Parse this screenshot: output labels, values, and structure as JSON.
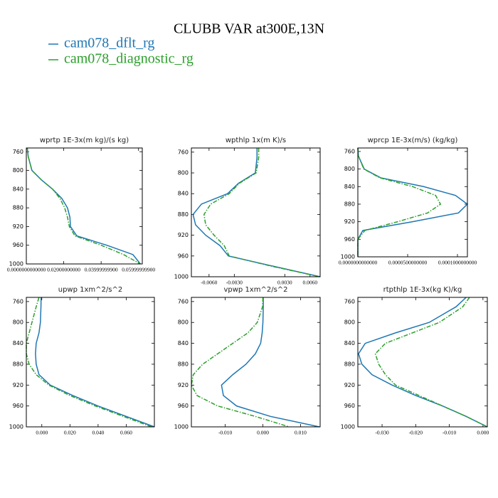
{
  "title": "CLUBB VAR at300E,13N",
  "chart_data": [
    {
      "type": "line",
      "title": "wprtp  1E-3x(m kg)/(s kg)",
      "y": [
        752,
        770,
        800,
        820,
        840,
        860,
        880,
        900,
        920,
        940,
        960,
        980,
        1000
      ],
      "xlim": [
        0,
        0.062
      ],
      "ylim": [
        1000,
        752
      ],
      "xticks": [
        {
          "value": 0,
          "label": "0.0000000000000"
        },
        {
          "value": 0.02,
          "label": "0.02000000000"
        },
        {
          "value": 0.04,
          "label": "0.03999999900"
        },
        {
          "value": 0.06,
          "label": "0.05999999900"
        }
      ],
      "yticks": [
        760,
        800,
        840,
        880,
        920,
        960,
        1000
      ],
      "series": [
        {
          "name": "cam078_dflt_rg",
          "color": "#1f77b4",
          "linestyle": "solid",
          "values": [
            0.0005,
            0.001,
            0.003,
            0.008,
            0.014,
            0.019,
            0.022,
            0.0233,
            0.0236,
            0.027,
            0.043,
            0.057,
            0.061
          ]
        },
        {
          "name": "cam078_diagnostic_rg",
          "color": "#2ca02c",
          "linestyle": "dashdot",
          "values": [
            0.0005,
            0.001,
            0.003,
            0.008,
            0.014,
            0.018,
            0.0205,
            0.022,
            0.023,
            0.026,
            0.04,
            0.052,
            0.061
          ]
        }
      ]
    },
    {
      "type": "line",
      "title": "wpthlp  1x(m K)/s",
      "y": [
        752,
        770,
        800,
        820,
        840,
        860,
        880,
        900,
        920,
        940,
        960,
        980,
        1000
      ],
      "xlim": [
        -0.0081,
        0.0072
      ],
      "ylim": [
        1000,
        752
      ],
      "xticks": [
        {
          "value": -0.006,
          "label": "-0.0060"
        },
        {
          "value": -0.003,
          "label": "-0.0030"
        },
        {
          "value": 0.003,
          "label": "0.0030"
        },
        {
          "value": 0.006,
          "label": "0.0060"
        }
      ],
      "yticks": [
        760,
        800,
        840,
        880,
        920,
        960,
        1000
      ],
      "series": [
        {
          "name": "cam078_dflt_rg",
          "color": "#1f77b4",
          "linestyle": "solid",
          "values": [
            -0.0003,
            -0.0003,
            -0.0005,
            -0.0025,
            -0.0038,
            -0.0069,
            -0.0079,
            -0.0076,
            -0.0064,
            -0.0047,
            -0.0037,
            0.0017,
            0.0072
          ]
        },
        {
          "name": "cam078_diagnostic_rg",
          "color": "#2ca02c",
          "linestyle": "dashdot",
          "values": [
            -0.0001,
            -0.0001,
            -0.0004,
            -0.0024,
            -0.0036,
            -0.0058,
            -0.0066,
            -0.0064,
            -0.0054,
            -0.0042,
            -0.0036,
            0.0015,
            0.0072
          ]
        }
      ]
    },
    {
      "type": "line",
      "title": "wprcp  1E-3x(m/s) (kg/kg)",
      "y": [
        752,
        770,
        800,
        820,
        840,
        860,
        880,
        900,
        920,
        940,
        960,
        980,
        1000
      ],
      "xlim": [
        0,
        0.00011
      ],
      "ylim": [
        1000,
        752
      ],
      "xticks": [
        {
          "value": 0,
          "label": "0.0000000000000"
        },
        {
          "value": 5e-05,
          "label": "0.0000500000000"
        },
        {
          "value": 0.0001,
          "label": "0.0001000000000"
        }
      ],
      "yticks": [
        760,
        800,
        840,
        880,
        920,
        960,
        1000
      ],
      "series": [
        {
          "name": "cam078_dflt_rg",
          "color": "#1f77b4",
          "linestyle": "solid",
          "values": [
            0,
            5e-07,
            6.4e-06,
            2.3e-05,
            6.6e-05,
            9.8e-05,
            0.00011,
            0.000101,
            5.5e-05,
            5e-06,
            0,
            0,
            0
          ]
        },
        {
          "name": "cam078_diagnostic_rg",
          "color": "#2ca02c",
          "linestyle": "dashdot",
          "values": [
            0,
            5e-07,
            6e-06,
            2.2e-05,
            5.5e-05,
            7.8e-05,
            8.3e-05,
            7e-05,
            4e-05,
            7e-06,
            0,
            0,
            0
          ]
        }
      ]
    },
    {
      "type": "line",
      "title": "upwp  1xm^2/s^2",
      "y": [
        752,
        770,
        800,
        820,
        840,
        860,
        880,
        900,
        920,
        940,
        960,
        980,
        1000
      ],
      "xlim": [
        -0.011,
        0.08
      ],
      "ylim": [
        1000,
        752
      ],
      "xticks": [
        {
          "value": 0,
          "label": "0.000"
        },
        {
          "value": 0.02,
          "label": "0.020"
        },
        {
          "value": 0.04,
          "label": "0.040"
        },
        {
          "value": 0.06,
          "label": "0.060"
        }
      ],
      "yticks": [
        760,
        800,
        840,
        880,
        920,
        960,
        1000
      ],
      "series": [
        {
          "name": "cam078_dflt_rg",
          "color": "#1f77b4",
          "linestyle": "solid",
          "values": [
            -0.0005,
            -0.0006,
            -0.001,
            -0.002,
            -0.004,
            -0.0045,
            -0.004,
            -0.002,
            0.006,
            0.022,
            0.04,
            0.06,
            0.08
          ]
        },
        {
          "name": "cam078_diagnostic_rg",
          "color": "#2ca02c",
          "linestyle": "dashdot",
          "values": [
            -0.002,
            -0.004,
            -0.007,
            -0.009,
            -0.011,
            -0.011,
            -0.009,
            -0.004,
            0.005,
            0.02,
            0.038,
            0.058,
            0.078
          ]
        }
      ]
    },
    {
      "type": "line",
      "title": "vpwp  1xm^2/s^2",
      "y": [
        752,
        770,
        800,
        820,
        840,
        860,
        880,
        900,
        920,
        940,
        960,
        980,
        1000
      ],
      "xlim": [
        -0.019,
        0.0152
      ],
      "ylim": [
        1000,
        752
      ],
      "xticks": [
        {
          "value": -0.01,
          "label": "-0.010"
        },
        {
          "value": 0,
          "label": "0.000"
        },
        {
          "value": 0.01,
          "label": "0.010"
        }
      ],
      "yticks": [
        760,
        800,
        840,
        880,
        920,
        960,
        1000
      ],
      "series": [
        {
          "name": "cam078_dflt_rg",
          "color": "#1f77b4",
          "linestyle": "solid",
          "values": [
            0.0001,
            0.0001,
            0,
            -0.0002,
            -0.0006,
            -0.002,
            -0.0045,
            -0.008,
            -0.011,
            -0.0105,
            -0.007,
            0.002,
            0.015
          ]
        },
        {
          "name": "cam078_diagnostic_rg",
          "color": "#2ca02c",
          "linestyle": "dashdot",
          "values": [
            0,
            -0.0001,
            -0.0015,
            -0.004,
            -0.008,
            -0.012,
            -0.016,
            -0.0185,
            -0.019,
            -0.0175,
            -0.012,
            -0.002,
            0.007
          ]
        }
      ]
    },
    {
      "type": "line",
      "title": "rtpthlp  1E-3x(kg K)/kg",
      "y": [
        752,
        770,
        800,
        820,
        840,
        860,
        880,
        900,
        920,
        940,
        960,
        980,
        1000
      ],
      "xlim": [
        -0.0372,
        0.0013
      ],
      "ylim": [
        1000,
        752
      ],
      "xticks": [
        {
          "value": -0.03,
          "label": "-0.030"
        },
        {
          "value": -0.02,
          "label": "-0.020"
        },
        {
          "value": -0.01,
          "label": "-0.010"
        },
        {
          "value": 0,
          "label": "0.000"
        }
      ],
      "yticks": [
        760,
        800,
        840,
        880,
        920,
        960,
        1000
      ],
      "series": [
        {
          "name": "cam078_dflt_rg",
          "color": "#1f77b4",
          "linestyle": "solid",
          "values": [
            -0.005,
            -0.008,
            -0.016,
            -0.026,
            -0.035,
            -0.037,
            -0.036,
            -0.033,
            -0.027,
            -0.02,
            -0.012,
            -0.005,
            0.0013
          ]
        },
        {
          "name": "cam078_diagnostic_rg",
          "color": "#2ca02c",
          "linestyle": "dashdot",
          "values": [
            -0.004,
            -0.006,
            -0.013,
            -0.021,
            -0.029,
            -0.032,
            -0.031,
            -0.029,
            -0.026,
            -0.019,
            -0.012,
            -0.005,
            0.0013
          ]
        }
      ]
    }
  ]
}
